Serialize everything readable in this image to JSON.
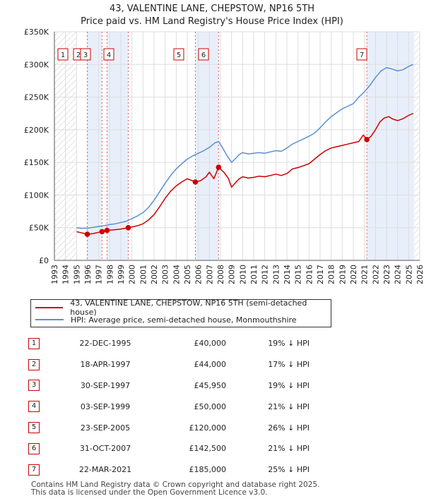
{
  "title": {
    "line1": "43, VALENTINE LANE, CHEPSTOW, NP16 5TH",
    "line2": "Price paid vs. HM Land Registry's House Price Index (HPI)"
  },
  "colors": {
    "property": "#cc0000",
    "hpi": "#5b8fd0",
    "shade": "#e8effa",
    "vline": "#e06060"
  },
  "legend": {
    "property": "43, VALENTINE LANE, CHEPSTOW, NP16 5TH (semi-detached house)",
    "hpi": "HPI: Average price, semi-detached house, Monmouthshire"
  },
  "chart_data": {
    "type": "line",
    "title": "Price paid vs. HM Land Registry's House Price Index (HPI)",
    "xlabel": "",
    "ylabel": "",
    "xlim": [
      1993,
      2026
    ],
    "ylim": [
      0,
      350000
    ],
    "grid": true,
    "x_ticks": [
      1993,
      1994,
      1995,
      1996,
      1997,
      1998,
      1999,
      2000,
      2001,
      2002,
      2003,
      2004,
      2005,
      2006,
      2007,
      2008,
      2009,
      2010,
      2011,
      2012,
      2013,
      2014,
      2015,
      2016,
      2017,
      2018,
      2019,
      2020,
      2021,
      2022,
      2023,
      2024,
      2025,
      2026
    ],
    "y_ticks": [
      0,
      50000,
      100000,
      150000,
      200000,
      250000,
      300000,
      350000
    ],
    "y_tick_labels": [
      "£0",
      "£50K",
      "£100K",
      "£150K",
      "£200K",
      "£250K",
      "£300K",
      "£350K"
    ],
    "shaded_periods": [
      [
        1995.97,
        1997.3
      ],
      [
        1997.75,
        1999.67
      ],
      [
        2005.73,
        2007.83
      ],
      [
        2021.22,
        2025.5
      ]
    ],
    "hatched_regions": [
      [
        1993,
        1995.0
      ],
      [
        2025.5,
        2026
      ]
    ],
    "series": [
      {
        "name": "43, VALENTINE LANE, CHEPSTOW, NP16 5TH (semi-detached house)",
        "x": [
          1995.0,
          1995.5,
          1995.97,
          1996.5,
          1997.0,
          1997.3,
          1997.75,
          1998.5,
          1999.0,
          1999.67,
          2000.5,
          2001.0,
          2001.5,
          2002.0,
          2002.5,
          2003.0,
          2003.5,
          2004.0,
          2004.5,
          2005.0,
          2005.73,
          2006.2,
          2006.7,
          2007.0,
          2007.4,
          2007.83,
          2008.3,
          2008.7,
          2009.0,
          2009.3,
          2009.7,
          2010.0,
          2010.5,
          2011.0,
          2011.5,
          2012.0,
          2012.5,
          2013.0,
          2013.5,
          2014.0,
          2014.5,
          2015.0,
          2015.5,
          2016.0,
          2016.5,
          2017.0,
          2017.5,
          2018.0,
          2018.5,
          2019.0,
          2019.5,
          2020.0,
          2020.5,
          2020.9,
          2021.22,
          2021.6,
          2022.0,
          2022.4,
          2022.8,
          2023.2,
          2023.6,
          2024.0,
          2024.5,
          2025.0,
          2025.4
        ],
        "y": [
          44000,
          42000,
          40000,
          41000,
          43000,
          44000,
          45950,
          47000,
          48000,
          50000,
          53000,
          56000,
          62000,
          70000,
          82000,
          95000,
          106000,
          114000,
          120000,
          125000,
          120000,
          122000,
          128000,
          135000,
          125000,
          142500,
          135000,
          126000,
          112000,
          118000,
          125000,
          128000,
          126000,
          127000,
          129000,
          128000,
          130000,
          132000,
          130000,
          133000,
          140000,
          142000,
          145000,
          148000,
          155000,
          162000,
          168000,
          172000,
          174000,
          176000,
          178000,
          180000,
          182000,
          192000,
          185000,
          190000,
          200000,
          212000,
          218000,
          220000,
          216000,
          214000,
          217000,
          222000,
          225000
        ]
      },
      {
        "name": "HPI: Average price, semi-detached house, Monmouthshire",
        "x": [
          1995.0,
          1995.5,
          1996.0,
          1996.5,
          1997.0,
          1997.5,
          1998.0,
          1998.5,
          1999.0,
          1999.5,
          2000.0,
          2000.5,
          2001.0,
          2001.5,
          2002.0,
          2002.5,
          2003.0,
          2003.5,
          2004.0,
          2004.5,
          2005.0,
          2005.5,
          2006.0,
          2006.5,
          2007.0,
          2007.5,
          2007.83,
          2008.2,
          2008.6,
          2009.0,
          2009.3,
          2009.7,
          2010.0,
          2010.5,
          2011.0,
          2011.5,
          2012.0,
          2012.5,
          2013.0,
          2013.5,
          2014.0,
          2014.5,
          2015.0,
          2015.5,
          2016.0,
          2016.5,
          2017.0,
          2017.5,
          2018.0,
          2018.5,
          2019.0,
          2019.5,
          2020.0,
          2020.5,
          2021.0,
          2021.5,
          2022.0,
          2022.5,
          2023.0,
          2023.5,
          2024.0,
          2024.5,
          2025.0,
          2025.4
        ],
        "y": [
          50000,
          49000,
          49500,
          50500,
          52000,
          53000,
          55000,
          56000,
          58000,
          60000,
          64000,
          68000,
          73000,
          81000,
          92000,
          105000,
          118000,
          130000,
          140000,
          148000,
          155000,
          160000,
          164000,
          168000,
          173000,
          180000,
          182000,
          172000,
          160000,
          150000,
          155000,
          162000,
          165000,
          163000,
          164000,
          165000,
          164000,
          166000,
          168000,
          167000,
          172000,
          178000,
          182000,
          186000,
          190000,
          195000,
          203000,
          212000,
          220000,
          226000,
          232000,
          236000,
          240000,
          250000,
          258000,
          268000,
          280000,
          290000,
          295000,
          293000,
          290000,
          292000,
          297000,
          300000
        ]
      }
    ],
    "sales": [
      {
        "marker": "1",
        "x": 1995.97,
        "y": 40000
      },
      {
        "marker": "2",
        "x": 1997.3,
        "y": 44000
      },
      {
        "marker": "3",
        "x": 1997.75,
        "y": 45950
      },
      {
        "marker": "4",
        "x": 1999.67,
        "y": 50000
      },
      {
        "marker": "5",
        "x": 2005.73,
        "y": 120000
      },
      {
        "marker": "6",
        "x": 2007.83,
        "y": 142500
      },
      {
        "marker": "7",
        "x": 2021.22,
        "y": 185000
      }
    ]
  },
  "sales_table": [
    {
      "num": "1",
      "date": "22-DEC-1995",
      "price": "£40,000",
      "hpi": "19% ↓ HPI"
    },
    {
      "num": "2",
      "date": "18-APR-1997",
      "price": "£44,000",
      "hpi": "17% ↓ HPI"
    },
    {
      "num": "3",
      "date": "30-SEP-1997",
      "price": "£45,950",
      "hpi": "19% ↓ HPI"
    },
    {
      "num": "4",
      "date": "03-SEP-1999",
      "price": "£50,000",
      "hpi": "21% ↓ HPI"
    },
    {
      "num": "5",
      "date": "23-SEP-2005",
      "price": "£120,000",
      "hpi": "26% ↓ HPI"
    },
    {
      "num": "6",
      "date": "31-OCT-2007",
      "price": "£142,500",
      "hpi": "21% ↓ HPI"
    },
    {
      "num": "7",
      "date": "22-MAR-2021",
      "price": "£185,000",
      "hpi": "25% ↓ HPI"
    }
  ],
  "footer": {
    "line1": "Contains HM Land Registry data © Crown copyright and database right 2025.",
    "line2": "This data is licensed under the Open Government Licence v3.0."
  }
}
